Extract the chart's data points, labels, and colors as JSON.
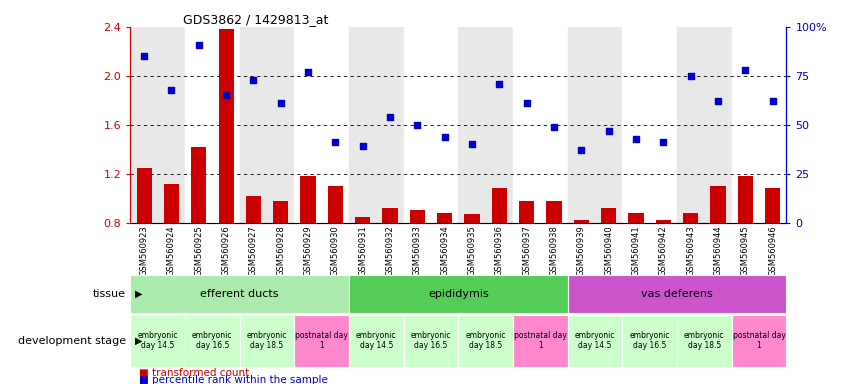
{
  "title": "GDS3862 / 1429813_at",
  "samples": [
    "GSM560923",
    "GSM560924",
    "GSM560925",
    "GSM560926",
    "GSM560927",
    "GSM560928",
    "GSM560929",
    "GSM560930",
    "GSM560931",
    "GSM560932",
    "GSM560933",
    "GSM560934",
    "GSM560935",
    "GSM560936",
    "GSM560937",
    "GSM560938",
    "GSM560939",
    "GSM560940",
    "GSM560941",
    "GSM560942",
    "GSM560943",
    "GSM560944",
    "GSM560945",
    "GSM560946"
  ],
  "bar_values": [
    1.25,
    1.12,
    1.42,
    2.38,
    1.02,
    0.98,
    1.18,
    1.1,
    0.85,
    0.92,
    0.9,
    0.88,
    0.87,
    1.08,
    0.98,
    0.98,
    0.82,
    0.92,
    0.88,
    0.82,
    0.88,
    1.1,
    1.18,
    1.08
  ],
  "scatter_pct": [
    85,
    68,
    91,
    65,
    73,
    61,
    77,
    41,
    39,
    54,
    50,
    44,
    40,
    71,
    61,
    49,
    37,
    47,
    43,
    41,
    75,
    62,
    78,
    62
  ],
  "ylim_left": [
    0.8,
    2.4
  ],
  "ylim_right": [
    0,
    100
  ],
  "yticks_left": [
    0.8,
    1.2,
    1.6,
    2.0,
    2.4
  ],
  "yticks_right": [
    0,
    25,
    50,
    75,
    100
  ],
  "bar_color": "#cc0000",
  "scatter_color": "#0000cc",
  "alternating_colors": [
    "#e8e8e8",
    "#ffffff"
  ],
  "tissue_groups": [
    {
      "label": "efferent ducts",
      "start": 0,
      "end": 7,
      "color": "#aaeaaa"
    },
    {
      "label": "epididymis",
      "start": 8,
      "end": 15,
      "color": "#55cc55"
    },
    {
      "label": "vas deferens",
      "start": 16,
      "end": 23,
      "color": "#cc55cc"
    }
  ],
  "dev_stage_groups": [
    {
      "label": "embryonic\nday 14.5",
      "start": 0,
      "end": 1,
      "color": "#ccffcc"
    },
    {
      "label": "embryonic\nday 16.5",
      "start": 2,
      "end": 3,
      "color": "#ccffcc"
    },
    {
      "label": "embryonic\nday 18.5",
      "start": 4,
      "end": 5,
      "color": "#ccffcc"
    },
    {
      "label": "postnatal day\n1",
      "start": 6,
      "end": 7,
      "color": "#ff88cc"
    },
    {
      "label": "embryonic\nday 14.5",
      "start": 8,
      "end": 9,
      "color": "#ccffcc"
    },
    {
      "label": "embryonic\nday 16.5",
      "start": 10,
      "end": 11,
      "color": "#ccffcc"
    },
    {
      "label": "embryonic\nday 18.5",
      "start": 12,
      "end": 13,
      "color": "#ccffcc"
    },
    {
      "label": "postnatal day\n1",
      "start": 14,
      "end": 15,
      "color": "#ff88cc"
    },
    {
      "label": "embryonic\nday 14.5",
      "start": 16,
      "end": 17,
      "color": "#ccffcc"
    },
    {
      "label": "embryonic\nday 16.5",
      "start": 18,
      "end": 19,
      "color": "#ccffcc"
    },
    {
      "label": "embryonic\nday 18.5",
      "start": 20,
      "end": 21,
      "color": "#ccffcc"
    },
    {
      "label": "postnatal day\n1",
      "start": 22,
      "end": 23,
      "color": "#ff88cc"
    }
  ],
  "legend_bar": "transformed count",
  "legend_scatter": "percentile rank within the sample",
  "tissue_label": "tissue",
  "dev_label": "development stage",
  "background_color": "#ffffff"
}
